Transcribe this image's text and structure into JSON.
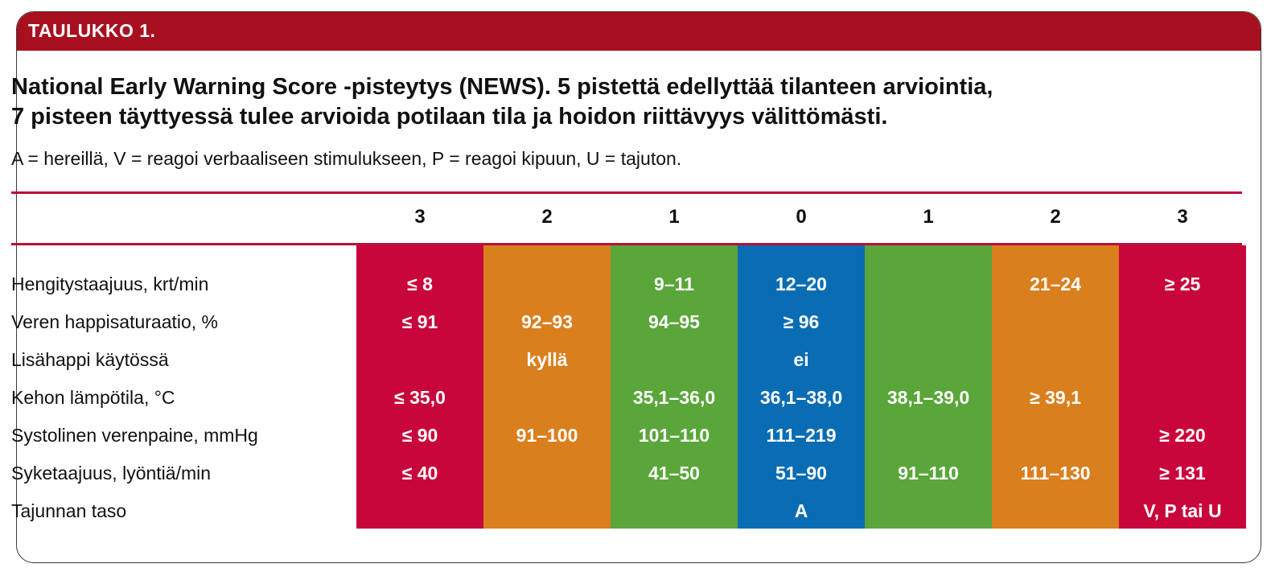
{
  "header": {
    "label": "TAULUKKO 1."
  },
  "title": {
    "line1": "National Early Warning Score -pisteytys (NEWS). 5 pistettä edellyttää tilanteen arviointia,",
    "line2": "7 pisteen täyttyessä tulee arvioida potilaan tila ja hoidon riittävyys välittömästi."
  },
  "subtitle": "A = hereillä, V = reagoi verbaaliseen stimulukseen, P = reagoi kipuun, U = tajuton.",
  "score_headers": [
    "3",
    "2",
    "1",
    "0",
    "1",
    "2",
    "3"
  ],
  "column_colors": [
    "#c8063c",
    "#da7f1e",
    "#5aa63a",
    "#0a6db3",
    "#5aa63a",
    "#da7f1e",
    "#c8063c"
  ],
  "rows": [
    {
      "label": "Hengitystaajuus, krt/min",
      "cells": [
        "≤ 8",
        "",
        "9–11",
        "12–20",
        "",
        "21–24",
        "≥ 25"
      ]
    },
    {
      "label": "Veren happisaturaatio, %",
      "cells": [
        "≤ 91",
        "92–93",
        "94–95",
        "≥ 96",
        "",
        "",
        ""
      ]
    },
    {
      "label": "Lisähappi käytössä",
      "cells": [
        "",
        "kyllä",
        "",
        "ei",
        "",
        "",
        ""
      ]
    },
    {
      "label": "Kehon lämpötila, °C",
      "cells": [
        "≤ 35,0",
        "",
        "35,1–36,0",
        "36,1–38,0",
        "38,1–39,0",
        "≥ 39,1",
        ""
      ]
    },
    {
      "label": "Systolinen verenpaine, mmHg",
      "cells": [
        "≤ 90",
        "91–100",
        "101–110",
        "111–219",
        "",
        "",
        "≥ 220"
      ]
    },
    {
      "label": "Syketaajuus, lyöntiä/min",
      "cells": [
        "≤ 40",
        "",
        "41–50",
        "51–90",
        "91–110",
        "111–130",
        "≥ 131"
      ]
    },
    {
      "label": "Tajunnan taso",
      "cells": [
        "",
        "",
        "",
        "A",
        "",
        "",
        "V, P tai U"
      ]
    }
  ]
}
